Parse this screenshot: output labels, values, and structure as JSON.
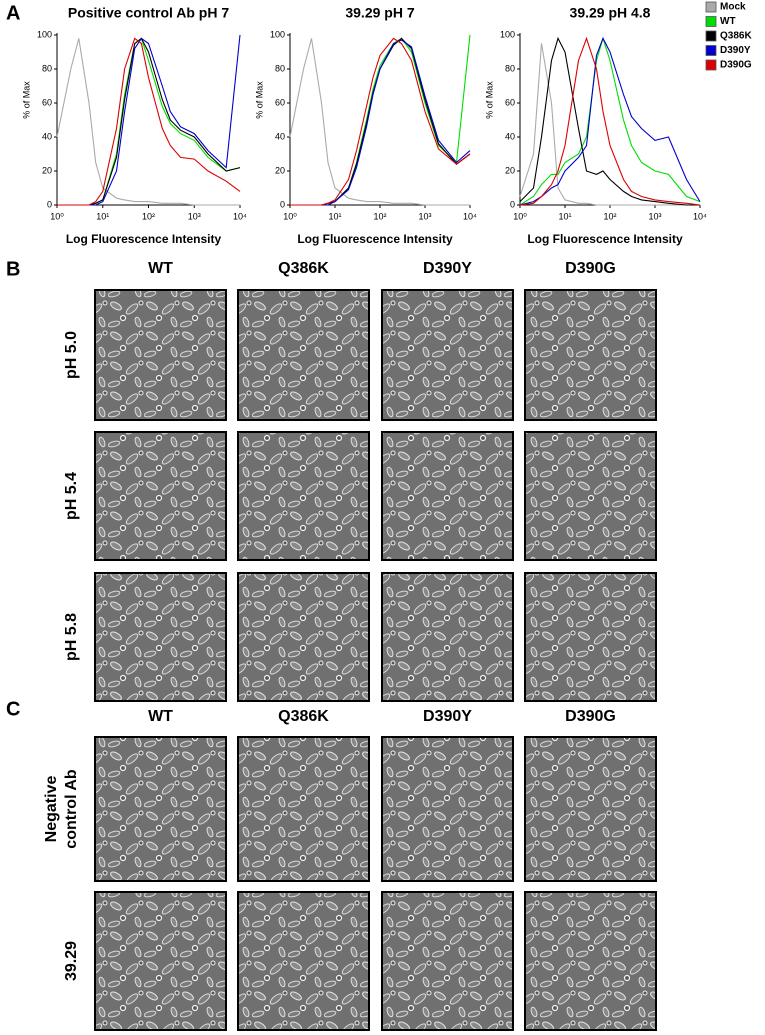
{
  "panel_a": {
    "label": "A"
  },
  "chart_data": [
    {
      "type": "line",
      "title": "Positive control Ab pH 7",
      "x_label": "Log Fluorescence Intensity",
      "y_label": "% of Max",
      "x": [
        1,
        2,
        3,
        5,
        7,
        10,
        20,
        30,
        50,
        70,
        100,
        200,
        300,
        500,
        1000,
        2000,
        5000,
        10000
      ],
      "x_log": true,
      "xlim": [
        1,
        10000
      ],
      "xticks": [
        {
          "value": 1,
          "label": "10⁰"
        },
        {
          "value": 10,
          "label": "10¹"
        },
        {
          "value": 100,
          "label": "10²"
        },
        {
          "value": 1000,
          "label": "10³"
        },
        {
          "value": 10000,
          "label": "10⁴"
        }
      ],
      "ylim": [
        0,
        100
      ],
      "yticks": [
        0,
        20,
        40,
        60,
        80,
        100
      ],
      "grid": false,
      "legend": false,
      "series": [
        {
          "name": "Mock",
          "color": "#aaaaaa",
          "values": [
            40,
            80,
            98,
            60,
            25,
            10,
            4,
            3,
            2,
            2,
            2,
            1,
            1,
            1,
            0,
            0,
            0,
            0
          ]
        },
        {
          "name": "WT",
          "color": "#00dd00",
          "values": [
            0,
            0,
            0,
            0,
            1,
            3,
            30,
            65,
            95,
            98,
            85,
            58,
            48,
            42,
            38,
            28,
            20,
            22
          ]
        },
        {
          "name": "Q386K",
          "color": "#000000",
          "values": [
            0,
            0,
            0,
            0,
            1,
            3,
            28,
            62,
            95,
            98,
            90,
            62,
            50,
            44,
            40,
            30,
            20,
            22
          ]
        },
        {
          "name": "D390Y",
          "color": "#0000cc",
          "values": [
            0,
            0,
            0,
            0,
            0,
            2,
            20,
            55,
            92,
            98,
            95,
            70,
            55,
            46,
            42,
            32,
            22,
            100
          ]
        },
        {
          "name": "D390G",
          "color": "#dd0000",
          "values": [
            0,
            0,
            0,
            0,
            2,
            8,
            45,
            80,
            98,
            95,
            75,
            45,
            35,
            28,
            27,
            20,
            14,
            8
          ]
        }
      ]
    },
    {
      "type": "line",
      "title": "39.29 pH 7",
      "x_label": "Log Fluorescence Intensity",
      "y_label": "% of Max",
      "x": [
        1,
        2,
        3,
        5,
        7,
        10,
        20,
        30,
        50,
        70,
        100,
        200,
        300,
        500,
        1000,
        2000,
        5000,
        10000
      ],
      "x_log": true,
      "xlim": [
        1,
        10000
      ],
      "xticks": [
        {
          "value": 1,
          "label": "10⁰"
        },
        {
          "value": 10,
          "label": "10¹"
        },
        {
          "value": 100,
          "label": "10²"
        },
        {
          "value": 1000,
          "label": "10³"
        },
        {
          "value": 10000,
          "label": "10⁴"
        }
      ],
      "ylim": [
        0,
        100
      ],
      "yticks": [
        0,
        20,
        40,
        60,
        80,
        100
      ],
      "grid": false,
      "legend": false,
      "series": [
        {
          "name": "Mock",
          "color": "#aaaaaa",
          "values": [
            40,
            80,
            98,
            60,
            25,
            10,
            4,
            3,
            2,
            2,
            2,
            1,
            1,
            1,
            0,
            0,
            0,
            0
          ]
        },
        {
          "name": "WT",
          "color": "#00dd00",
          "values": [
            0,
            0,
            0,
            0,
            1,
            2,
            10,
            25,
            50,
            68,
            82,
            95,
            98,
            90,
            60,
            35,
            25,
            100
          ]
        },
        {
          "name": "Q386K",
          "color": "#000000",
          "values": [
            0,
            0,
            0,
            0,
            1,
            2,
            10,
            24,
            48,
            66,
            80,
            94,
            98,
            92,
            62,
            36,
            24,
            30
          ]
        },
        {
          "name": "D390Y",
          "color": "#0000cc",
          "values": [
            0,
            0,
            0,
            0,
            0,
            2,
            9,
            22,
            46,
            65,
            80,
            95,
            97,
            93,
            64,
            38,
            25,
            32
          ]
        },
        {
          "name": "D390G",
          "color": "#dd0000",
          "values": [
            0,
            0,
            0,
            0,
            1,
            3,
            15,
            32,
            58,
            75,
            88,
            98,
            95,
            85,
            55,
            33,
            24,
            30
          ]
        }
      ]
    },
    {
      "type": "line",
      "title": "39.29 pH 4.8",
      "x_label": "Log Fluorescence Intensity",
      "y_label": "% of Max",
      "x": [
        1,
        2,
        3,
        5,
        7,
        10,
        20,
        30,
        50,
        70,
        100,
        200,
        300,
        500,
        1000,
        2000,
        5000,
        10000
      ],
      "x_log": true,
      "xlim": [
        1,
        10000
      ],
      "xticks": [
        {
          "value": 1,
          "label": "10⁰"
        },
        {
          "value": 10,
          "label": "10¹"
        },
        {
          "value": 100,
          "label": "10²"
        },
        {
          "value": 1000,
          "label": "10³"
        },
        {
          "value": 10000,
          "label": "10⁴"
        }
      ],
      "ylim": [
        0,
        100
      ],
      "yticks": [
        0,
        20,
        40,
        60,
        80,
        100
      ],
      "grid": false,
      "legend": "outside upper right",
      "series": [
        {
          "name": "Mock",
          "color": "#aaaaaa",
          "values": [
            5,
            30,
            95,
            60,
            10,
            3,
            1,
            1,
            0,
            0,
            0,
            0,
            0,
            0,
            0,
            0,
            0,
            0
          ]
        },
        {
          "name": "WT",
          "color": "#00dd00",
          "values": [
            0,
            5,
            12,
            18,
            18,
            25,
            30,
            40,
            85,
            98,
            85,
            50,
            35,
            25,
            20,
            18,
            5,
            2
          ]
        },
        {
          "name": "Q386K",
          "color": "#000000",
          "values": [
            2,
            10,
            40,
            85,
            98,
            90,
            45,
            20,
            18,
            20,
            15,
            8,
            5,
            3,
            2,
            1,
            0,
            0
          ]
        },
        {
          "name": "D390Y",
          "color": "#0000cc",
          "values": [
            0,
            2,
            5,
            10,
            12,
            20,
            28,
            35,
            88,
            98,
            90,
            65,
            52,
            45,
            38,
            40,
            15,
            2
          ]
        },
        {
          "name": "D390G",
          "color": "#dd0000",
          "values": [
            0,
            1,
            5,
            12,
            20,
            35,
            85,
            98,
            80,
            55,
            35,
            15,
            8,
            5,
            3,
            2,
            1,
            0
          ]
        }
      ]
    }
  ],
  "panel_b": {
    "label": "B",
    "columns": [
      "WT",
      "Q386K",
      "D390Y",
      "D390G"
    ],
    "rows": [
      [
        "pH 5.0"
      ],
      [
        "pH 5.4"
      ],
      [
        "pH 5.8"
      ]
    ]
  },
  "panel_c": {
    "label": "C",
    "columns": [
      "WT",
      "Q386K",
      "D390Y",
      "D390G"
    ],
    "rows": [
      [
        "Negative",
        "control Ab"
      ],
      [
        "39.29"
      ]
    ]
  }
}
